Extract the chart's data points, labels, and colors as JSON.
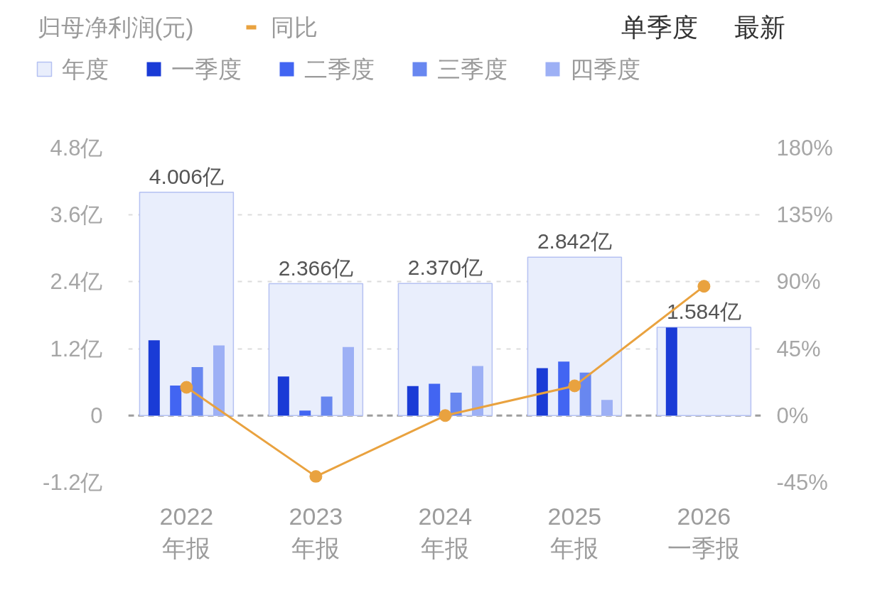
{
  "chart_data": {
    "type": "bar",
    "title": "归母净利润(元)",
    "annotations": [
      "单季度",
      "最新"
    ],
    "categories": [
      "2022\n年报",
      "2023\n年报",
      "2024\n年报",
      "2025\n年报",
      "2026\n一季报"
    ],
    "series": [
      {
        "name": "年度",
        "color": "#e9eefc",
        "values": [
          4.006,
          2.366,
          2.37,
          2.842,
          1.584
        ],
        "value_labels": [
          "4.006亿",
          "2.366亿",
          "2.370亿",
          "2.842亿",
          "1.584亿"
        ]
      },
      {
        "name": "一季度",
        "color": "#1a3bd6",
        "values": [
          1.35,
          0.7,
          0.53,
          0.85,
          1.58
        ]
      },
      {
        "name": "二季度",
        "color": "#4265f2",
        "values": [
          0.54,
          0.09,
          0.57,
          0.97,
          null
        ]
      },
      {
        "name": "三季度",
        "color": "#6887f0",
        "values": [
          0.87,
          0.34,
          0.41,
          0.77,
          null
        ]
      },
      {
        "name": "四季度",
        "color": "#9db0f5",
        "values": [
          1.26,
          1.23,
          0.89,
          0.28,
          null
        ]
      },
      {
        "name": "同比",
        "type": "line",
        "axis": "y2",
        "color": "#e9a23f",
        "values": [
          19,
          -41,
          0,
          20,
          87
        ]
      }
    ],
    "ylim": [
      -1.2,
      4.8
    ],
    "yticks": [
      {
        "value": -1.2,
        "label": "-1.2亿"
      },
      0,
      {
        "value": 1.2,
        "label": "1.2亿"
      },
      {
        "value": 2.4,
        "label": "2.4亿"
      },
      {
        "value": 3.6,
        "label": "3.6亿"
      },
      {
        "value": 4.8,
        "label": "4.8亿"
      }
    ],
    "y2lim": [
      -45,
      180
    ],
    "y2ticks": [
      {
        "value": -45,
        "label": "-45%"
      },
      {
        "value": 0,
        "label": "0%"
      },
      {
        "value": 45,
        "label": "45%"
      },
      {
        "value": 90,
        "label": "90%"
      },
      {
        "value": 135,
        "label": "135%"
      },
      {
        "value": 180,
        "label": "180%"
      }
    ],
    "grid": "y",
    "legend": "top left",
    "marker": "circle",
    "ref_lines": [
      {
        "axis": "y",
        "value": 0,
        "color": "#9e9e9e",
        "line_style": "dashed"
      }
    ]
  }
}
